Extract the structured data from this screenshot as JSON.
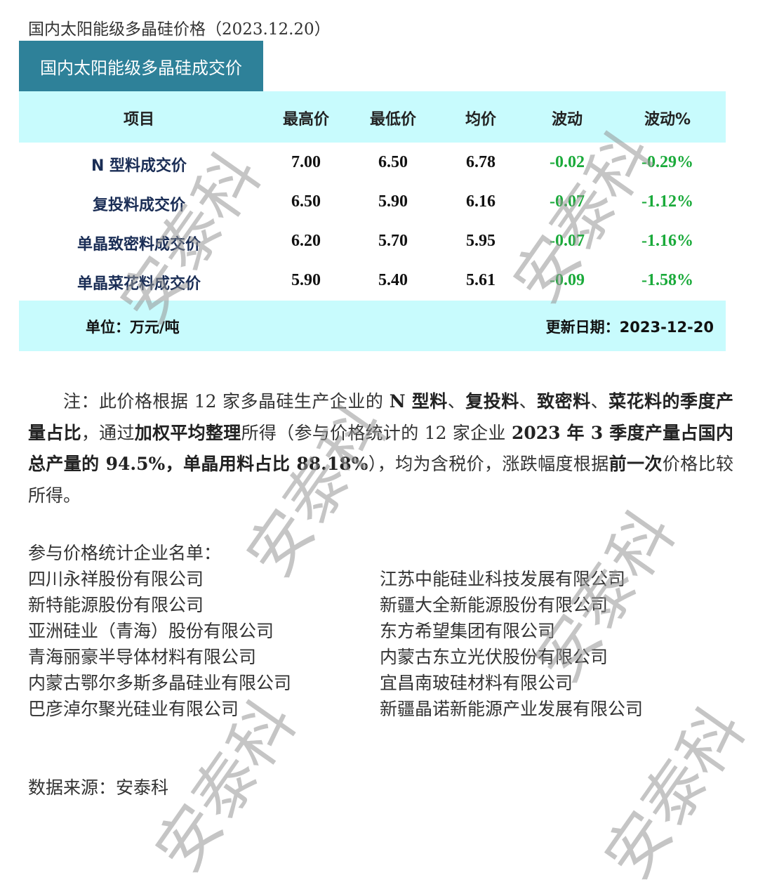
{
  "title": "国内太阳能级多晶硅价格（2023.12.20）",
  "banner": "国内太阳能级多晶硅成交价",
  "table": {
    "headers": [
      "项目",
      "最高价",
      "最低价",
      "均价",
      "波动",
      "波动%"
    ],
    "rows": [
      [
        "N 型料成交价",
        "7.00",
        "6.50",
        "6.78",
        "-0.02",
        "-0.29%"
      ],
      [
        "复投料成交价",
        "6.50",
        "5.90",
        "6.16",
        "-0.07",
        "-1.12%"
      ],
      [
        "单晶致密料成交价",
        "6.20",
        "5.70",
        "5.95",
        "-0.07",
        "-1.16%"
      ],
      [
        "单晶菜花料成交价",
        "5.90",
        "5.40",
        "5.61",
        "-0.09",
        "-1.58%"
      ]
    ],
    "unit": "单位：万元/吨",
    "updated": "更新日期：2023-12-20"
  },
  "colors": {
    "banner": "#2e8199",
    "band": "#c8fbfd",
    "negative": "#1aaa3a",
    "item": "#1a2d55"
  },
  "note": {
    "segments": [
      {
        "text": "注：此价格根据 12 家多晶硅生产企业的 ",
        "bold": false
      },
      {
        "text": "N 型料",
        "bold": true
      },
      {
        "text": "、",
        "bold": false
      },
      {
        "text": "复投料",
        "bold": true
      },
      {
        "text": "、",
        "bold": false
      },
      {
        "text": "致密料",
        "bold": true
      },
      {
        "text": "、",
        "bold": false
      },
      {
        "text": "菜花料的季度产量占比",
        "bold": true
      },
      {
        "text": "，通过",
        "bold": false
      },
      {
        "text": "加权平均整理",
        "bold": true
      },
      {
        "text": "所得（参与价格统计的 12 家企业 ",
        "bold": false
      },
      {
        "text": "2023 年 3 季度产量占国内总产量的 94.5%，单晶用料占比 88.18%",
        "bold": true
      },
      {
        "text": "），均为含税价，涨跌幅度根据",
        "bold": false
      },
      {
        "text": "前一次",
        "bold": true
      },
      {
        "text": "价格比较所得。",
        "bold": false
      }
    ]
  },
  "companies": {
    "heading": "参与价格统计企业名单：",
    "left": [
      "四川永祥股份有限公司",
      "新特能源股份有限公司",
      "亚洲硅业（青海）股份有限公司",
      "青海丽豪半导体材料有限公司",
      "内蒙古鄂尔多斯多晶硅业有限公司",
      "巴彦淖尔聚光硅业有限公司"
    ],
    "right": [
      "江苏中能硅业科技发展有限公司",
      "新疆大全新能源股份有限公司",
      "东方希望集团有限公司",
      "内蒙古东立光伏股份有限公司",
      "宜昌南玻硅材料有限公司",
      "新疆晶诺新能源产业发展有限公司"
    ]
  },
  "source": "数据来源：安泰科",
  "watermark": "安泰科"
}
